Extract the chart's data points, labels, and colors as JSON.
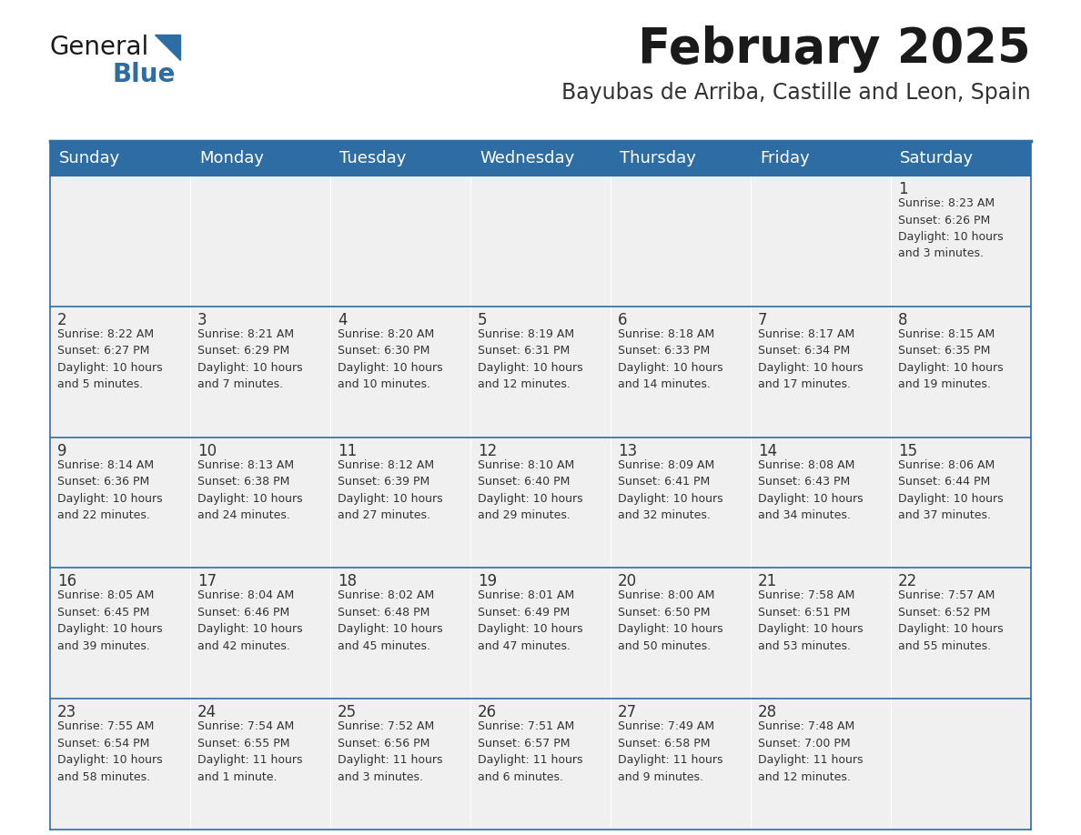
{
  "title": "February 2025",
  "subtitle": "Bayubas de Arriba, Castille and Leon, Spain",
  "header_bg": "#2E6DA4",
  "header_text_color": "#FFFFFF",
  "cell_bg": "#F0F0F0",
  "border_color": "#2E6DA4",
  "sep_color": "#4A90C4",
  "text_color": "#333333",
  "days_of_week": [
    "Sunday",
    "Monday",
    "Tuesday",
    "Wednesday",
    "Thursday",
    "Friday",
    "Saturday"
  ],
  "calendar_data": [
    [
      {
        "day": "",
        "info": ""
      },
      {
        "day": "",
        "info": ""
      },
      {
        "day": "",
        "info": ""
      },
      {
        "day": "",
        "info": ""
      },
      {
        "day": "",
        "info": ""
      },
      {
        "day": "",
        "info": ""
      },
      {
        "day": "1",
        "info": "Sunrise: 8:23 AM\nSunset: 6:26 PM\nDaylight: 10 hours\nand 3 minutes."
      }
    ],
    [
      {
        "day": "2",
        "info": "Sunrise: 8:22 AM\nSunset: 6:27 PM\nDaylight: 10 hours\nand 5 minutes."
      },
      {
        "day": "3",
        "info": "Sunrise: 8:21 AM\nSunset: 6:29 PM\nDaylight: 10 hours\nand 7 minutes."
      },
      {
        "day": "4",
        "info": "Sunrise: 8:20 AM\nSunset: 6:30 PM\nDaylight: 10 hours\nand 10 minutes."
      },
      {
        "day": "5",
        "info": "Sunrise: 8:19 AM\nSunset: 6:31 PM\nDaylight: 10 hours\nand 12 minutes."
      },
      {
        "day": "6",
        "info": "Sunrise: 8:18 AM\nSunset: 6:33 PM\nDaylight: 10 hours\nand 14 minutes."
      },
      {
        "day": "7",
        "info": "Sunrise: 8:17 AM\nSunset: 6:34 PM\nDaylight: 10 hours\nand 17 minutes."
      },
      {
        "day": "8",
        "info": "Sunrise: 8:15 AM\nSunset: 6:35 PM\nDaylight: 10 hours\nand 19 minutes."
      }
    ],
    [
      {
        "day": "9",
        "info": "Sunrise: 8:14 AM\nSunset: 6:36 PM\nDaylight: 10 hours\nand 22 minutes."
      },
      {
        "day": "10",
        "info": "Sunrise: 8:13 AM\nSunset: 6:38 PM\nDaylight: 10 hours\nand 24 minutes."
      },
      {
        "day": "11",
        "info": "Sunrise: 8:12 AM\nSunset: 6:39 PM\nDaylight: 10 hours\nand 27 minutes."
      },
      {
        "day": "12",
        "info": "Sunrise: 8:10 AM\nSunset: 6:40 PM\nDaylight: 10 hours\nand 29 minutes."
      },
      {
        "day": "13",
        "info": "Sunrise: 8:09 AM\nSunset: 6:41 PM\nDaylight: 10 hours\nand 32 minutes."
      },
      {
        "day": "14",
        "info": "Sunrise: 8:08 AM\nSunset: 6:43 PM\nDaylight: 10 hours\nand 34 minutes."
      },
      {
        "day": "15",
        "info": "Sunrise: 8:06 AM\nSunset: 6:44 PM\nDaylight: 10 hours\nand 37 minutes."
      }
    ],
    [
      {
        "day": "16",
        "info": "Sunrise: 8:05 AM\nSunset: 6:45 PM\nDaylight: 10 hours\nand 39 minutes."
      },
      {
        "day": "17",
        "info": "Sunrise: 8:04 AM\nSunset: 6:46 PM\nDaylight: 10 hours\nand 42 minutes."
      },
      {
        "day": "18",
        "info": "Sunrise: 8:02 AM\nSunset: 6:48 PM\nDaylight: 10 hours\nand 45 minutes."
      },
      {
        "day": "19",
        "info": "Sunrise: 8:01 AM\nSunset: 6:49 PM\nDaylight: 10 hours\nand 47 minutes."
      },
      {
        "day": "20",
        "info": "Sunrise: 8:00 AM\nSunset: 6:50 PM\nDaylight: 10 hours\nand 50 minutes."
      },
      {
        "day": "21",
        "info": "Sunrise: 7:58 AM\nSunset: 6:51 PM\nDaylight: 10 hours\nand 53 minutes."
      },
      {
        "day": "22",
        "info": "Sunrise: 7:57 AM\nSunset: 6:52 PM\nDaylight: 10 hours\nand 55 minutes."
      }
    ],
    [
      {
        "day": "23",
        "info": "Sunrise: 7:55 AM\nSunset: 6:54 PM\nDaylight: 10 hours\nand 58 minutes."
      },
      {
        "day": "24",
        "info": "Sunrise: 7:54 AM\nSunset: 6:55 PM\nDaylight: 11 hours\nand 1 minute."
      },
      {
        "day": "25",
        "info": "Sunrise: 7:52 AM\nSunset: 6:56 PM\nDaylight: 11 hours\nand 3 minutes."
      },
      {
        "day": "26",
        "info": "Sunrise: 7:51 AM\nSunset: 6:57 PM\nDaylight: 11 hours\nand 6 minutes."
      },
      {
        "day": "27",
        "info": "Sunrise: 7:49 AM\nSunset: 6:58 PM\nDaylight: 11 hours\nand 9 minutes."
      },
      {
        "day": "28",
        "info": "Sunrise: 7:48 AM\nSunset: 7:00 PM\nDaylight: 11 hours\nand 12 minutes."
      },
      {
        "day": "",
        "info": ""
      }
    ]
  ],
  "logo_text_general": "General",
  "logo_text_blue": "Blue",
  "logo_color_general": "#1a1a1a",
  "logo_color_blue": "#2E6DA4",
  "title_fontsize": 38,
  "subtitle_fontsize": 17,
  "header_fontsize": 13,
  "day_num_fontsize": 12,
  "day_info_fontsize": 9
}
